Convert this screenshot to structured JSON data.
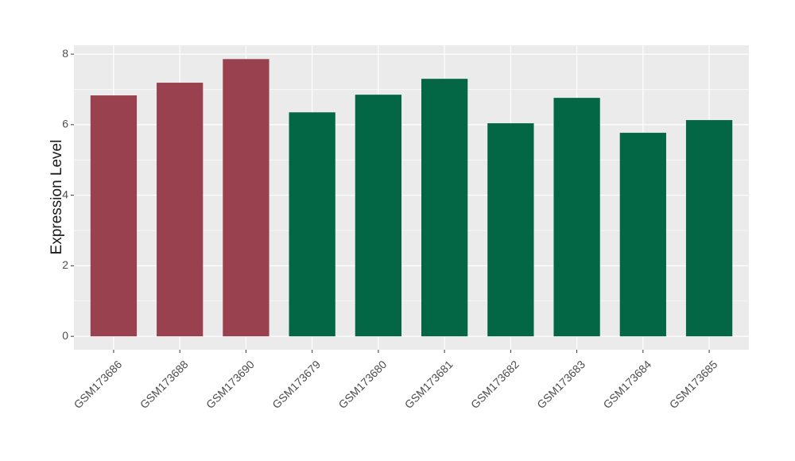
{
  "chart_data": {
    "type": "bar",
    "y_label": "Expression Level",
    "categories": [
      "GSM173686",
      "GSM173688",
      "GSM173690",
      "GSM173679",
      "GSM173680",
      "GSM173681",
      "GSM173682",
      "GSM173683",
      "GSM173684",
      "GSM173685"
    ],
    "values": [
      6.83,
      7.19,
      7.86,
      6.35,
      6.85,
      7.3,
      6.04,
      6.76,
      5.77,
      6.13
    ],
    "colors": [
      "#99414f",
      "#99414f",
      "#99414f",
      "#036644",
      "#036644",
      "#036644",
      "#036644",
      "#036644",
      "#036644",
      "#036644"
    ],
    "ylim": [
      -0.38,
      8.25
    ],
    "yticks": [
      0,
      2,
      4,
      6,
      8
    ],
    "grid": true
  }
}
